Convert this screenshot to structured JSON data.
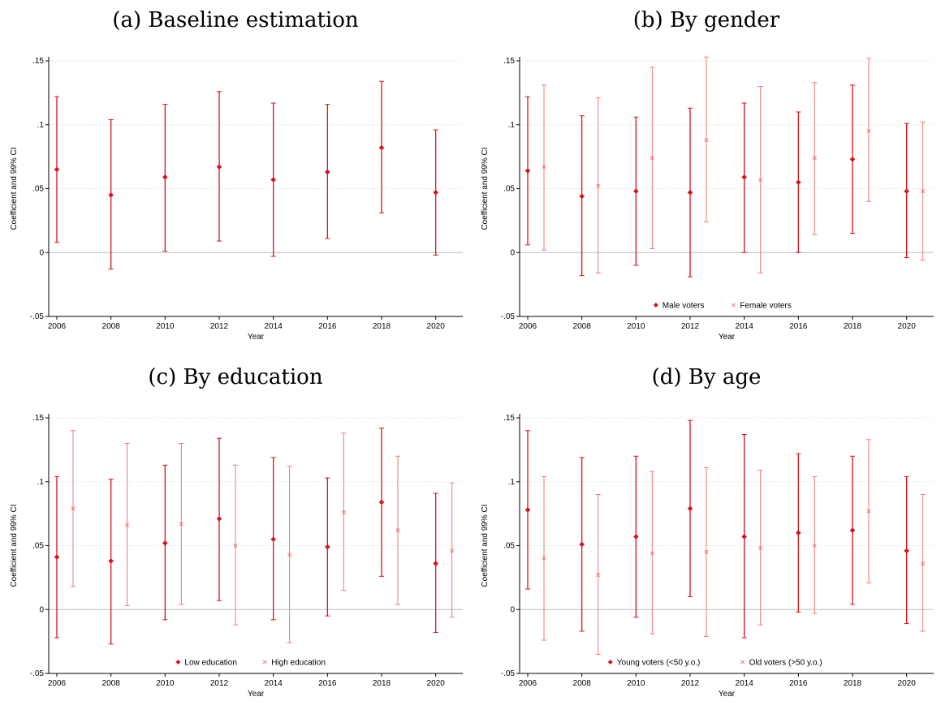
{
  "colors": {
    "primary": "#d8131f",
    "secondary": "#f07878",
    "grid": "#d9d9d9",
    "zero": "#bdbdbd"
  },
  "chart_data": [
    {
      "panel_title": "(a) Baseline estimation",
      "type": "errorbar",
      "xlabel": "Year",
      "ylabel": "Coefficient and 99% CI",
      "x_ticks": [
        "2006",
        "2008",
        "2010",
        "2012",
        "2014",
        "2016",
        "2018",
        "2020"
      ],
      "y_ticks": [
        ".15",
        ".1",
        ".05",
        "0",
        "-.05"
      ],
      "ylim": [
        -0.05,
        0.15
      ],
      "grid": true,
      "legend": null,
      "series": [
        {
          "marker": "diamond",
          "points": [
            {
              "year": 2006,
              "est": 0.065,
              "lo": 0.008,
              "hi": 0.122
            },
            {
              "year": 2008,
              "est": 0.045,
              "lo": -0.013,
              "hi": 0.104
            },
            {
              "year": 2010,
              "est": 0.059,
              "lo": 0.001,
              "hi": 0.116
            },
            {
              "year": 2012,
              "est": 0.067,
              "lo": 0.009,
              "hi": 0.126
            },
            {
              "year": 2014,
              "est": 0.057,
              "lo": -0.003,
              "hi": 0.117
            },
            {
              "year": 2016,
              "est": 0.063,
              "lo": 0.011,
              "hi": 0.116
            },
            {
              "year": 2018,
              "est": 0.082,
              "lo": 0.031,
              "hi": 0.134
            },
            {
              "year": 2020,
              "est": 0.047,
              "lo": -0.002,
              "hi": 0.096
            }
          ]
        }
      ]
    },
    {
      "panel_title": "(b) By gender",
      "type": "errorbar",
      "xlabel": "Year",
      "ylabel": "Coefficient and 99% CI",
      "x_ticks": [
        "2006",
        "2008",
        "2010",
        "2012",
        "2014",
        "2016",
        "2018",
        "2020"
      ],
      "y_ticks": [
        ".15",
        ".1",
        ".05",
        "0",
        "-.05"
      ],
      "ylim": [
        -0.05,
        0.15
      ],
      "grid": true,
      "legend": "bottom-center",
      "series": [
        {
          "name": "Male voters",
          "marker": "diamond",
          "points": [
            {
              "year": 2006,
              "est": 0.064,
              "lo": 0.006,
              "hi": 0.122
            },
            {
              "year": 2008,
              "est": 0.044,
              "lo": -0.018,
              "hi": 0.107
            },
            {
              "year": 2010,
              "est": 0.048,
              "lo": -0.01,
              "hi": 0.106
            },
            {
              "year": 2012,
              "est": 0.047,
              "lo": -0.019,
              "hi": 0.113
            },
            {
              "year": 2014,
              "est": 0.059,
              "lo": 0.0,
              "hi": 0.117
            },
            {
              "year": 2016,
              "est": 0.055,
              "lo": 0.0,
              "hi": 0.11
            },
            {
              "year": 2018,
              "est": 0.073,
              "lo": 0.015,
              "hi": 0.131
            },
            {
              "year": 2020,
              "est": 0.048,
              "lo": -0.004,
              "hi": 0.101
            }
          ]
        },
        {
          "name": "Female voters",
          "marker": "x",
          "points": [
            {
              "year": 2006.6,
              "est": 0.067,
              "lo": 0.002,
              "hi": 0.131
            },
            {
              "year": 2008.6,
              "est": 0.052,
              "lo": -0.016,
              "hi": 0.121
            },
            {
              "year": 2010.6,
              "est": 0.074,
              "lo": 0.003,
              "hi": 0.145
            },
            {
              "year": 2012.6,
              "est": 0.088,
              "lo": 0.024,
              "hi": 0.153
            },
            {
              "year": 2014.6,
              "est": 0.057,
              "lo": -0.016,
              "hi": 0.13
            },
            {
              "year": 2016.6,
              "est": 0.074,
              "lo": 0.014,
              "hi": 0.133
            },
            {
              "year": 2018.6,
              "est": 0.095,
              "lo": 0.04,
              "hi": 0.152
            },
            {
              "year": 2020.6,
              "est": 0.048,
              "lo": -0.006,
              "hi": 0.102
            }
          ]
        }
      ]
    },
    {
      "panel_title": "(c) By education",
      "type": "errorbar",
      "xlabel": "Year",
      "ylabel": "Coefficient and 99% CI",
      "x_ticks": [
        "2006",
        "2008",
        "2010",
        "2012",
        "2014",
        "2016",
        "2018",
        "2020"
      ],
      "y_ticks": [
        ".15",
        ".1",
        ".05",
        "0",
        "-.05"
      ],
      "ylim": [
        -0.05,
        0.15
      ],
      "grid": true,
      "legend": "bottom-center",
      "series": [
        {
          "name": "Low education",
          "marker": "diamond",
          "points": [
            {
              "year": 2006,
              "est": 0.041,
              "lo": -0.022,
              "hi": 0.104
            },
            {
              "year": 2008,
              "est": 0.038,
              "lo": -0.027,
              "hi": 0.102
            },
            {
              "year": 2010,
              "est": 0.052,
              "lo": -0.008,
              "hi": 0.113
            },
            {
              "year": 2012,
              "est": 0.071,
              "lo": 0.007,
              "hi": 0.134
            },
            {
              "year": 2014,
              "est": 0.055,
              "lo": -0.008,
              "hi": 0.119
            },
            {
              "year": 2016,
              "est": 0.049,
              "lo": -0.005,
              "hi": 0.103
            },
            {
              "year": 2018,
              "est": 0.084,
              "lo": 0.026,
              "hi": 0.142
            },
            {
              "year": 2020,
              "est": 0.036,
              "lo": -0.018,
              "hi": 0.091
            }
          ]
        },
        {
          "name": "High education",
          "marker": "x",
          "points": [
            {
              "year": 2006.6,
              "est": 0.079,
              "lo": 0.018,
              "hi": 0.14
            },
            {
              "year": 2008.6,
              "est": 0.066,
              "lo": 0.003,
              "hi": 0.13
            },
            {
              "year": 2010.6,
              "est": 0.067,
              "lo": 0.004,
              "hi": 0.13
            },
            {
              "year": 2012.6,
              "est": 0.05,
              "lo": -0.012,
              "hi": 0.113
            },
            {
              "year": 2014.6,
              "est": 0.043,
              "lo": -0.026,
              "hi": 0.112
            },
            {
              "year": 2016.6,
              "est": 0.076,
              "lo": 0.015,
              "hi": 0.138
            },
            {
              "year": 2018.6,
              "est": 0.062,
              "lo": 0.004,
              "hi": 0.12
            },
            {
              "year": 2020.6,
              "est": 0.046,
              "lo": -0.006,
              "hi": 0.099
            }
          ]
        }
      ]
    },
    {
      "panel_title": "(d) By age",
      "type": "errorbar",
      "xlabel": "Year",
      "ylabel": "Coefficient and 99% CI",
      "x_ticks": [
        "2006",
        "2008",
        "2010",
        "2012",
        "2014",
        "2016",
        "2018",
        "2020"
      ],
      "y_ticks": [
        ".15",
        ".1",
        ".05",
        "0",
        "-.05"
      ],
      "ylim": [
        -0.05,
        0.15
      ],
      "grid": true,
      "legend": "bottom-center",
      "series": [
        {
          "name": "Young voters (<50 y.o.)",
          "marker": "diamond",
          "points": [
            {
              "year": 2006,
              "est": 0.078,
              "lo": 0.016,
              "hi": 0.14
            },
            {
              "year": 2008,
              "est": 0.051,
              "lo": -0.017,
              "hi": 0.119
            },
            {
              "year": 2010,
              "est": 0.057,
              "lo": -0.006,
              "hi": 0.12
            },
            {
              "year": 2012,
              "est": 0.079,
              "lo": 0.01,
              "hi": 0.148
            },
            {
              "year": 2014,
              "est": 0.057,
              "lo": -0.022,
              "hi": 0.137
            },
            {
              "year": 2016,
              "est": 0.06,
              "lo": -0.002,
              "hi": 0.122
            },
            {
              "year": 2018,
              "est": 0.062,
              "lo": 0.004,
              "hi": 0.12
            },
            {
              "year": 2020,
              "est": 0.046,
              "lo": -0.011,
              "hi": 0.104
            }
          ]
        },
        {
          "name": "Old voters (>50 y.o.)",
          "marker": "x",
          "points": [
            {
              "year": 2006.6,
              "est": 0.04,
              "lo": -0.024,
              "hi": 0.104
            },
            {
              "year": 2008.6,
              "est": 0.027,
              "lo": -0.035,
              "hi": 0.09
            },
            {
              "year": 2010.6,
              "est": 0.044,
              "lo": -0.019,
              "hi": 0.108
            },
            {
              "year": 2012.6,
              "est": 0.045,
              "lo": -0.021,
              "hi": 0.111
            },
            {
              "year": 2014.6,
              "est": 0.048,
              "lo": -0.012,
              "hi": 0.109
            },
            {
              "year": 2016.6,
              "est": 0.05,
              "lo": -0.003,
              "hi": 0.104
            },
            {
              "year": 2018.6,
              "est": 0.077,
              "lo": 0.021,
              "hi": 0.133
            },
            {
              "year": 2020.6,
              "est": 0.036,
              "lo": -0.017,
              "hi": 0.09
            }
          ]
        }
      ]
    }
  ]
}
